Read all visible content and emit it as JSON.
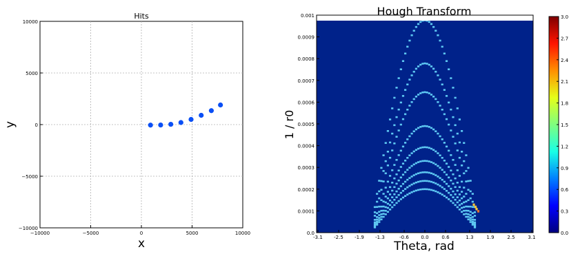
{
  "chart_data": [
    {
      "type": "scatter",
      "title": "Hits",
      "xlabel": "x",
      "ylabel": "y",
      "xlim": [
        -10000,
        10000
      ],
      "ylim": [
        -10000,
        10000
      ],
      "grid": true,
      "xticks": [
        -10000,
        -5000,
        0,
        5000,
        10000
      ],
      "yticks": [
        -10000,
        -5000,
        0,
        5000,
        10000
      ],
      "xtick_labels": [
        "−10000",
        "−5000",
        "0",
        "5000",
        "10000"
      ],
      "ytick_labels": [
        "−10000",
        "−5000",
        "0",
        "5000",
        "10000"
      ],
      "point_color": "#0a4ff5",
      "points": [
        {
          "x": 900,
          "y": -50
        },
        {
          "x": 1900,
          "y": -40
        },
        {
          "x": 2900,
          "y": 30
        },
        {
          "x": 3900,
          "y": 200
        },
        {
          "x": 4900,
          "y": 500
        },
        {
          "x": 5900,
          "y": 900
        },
        {
          "x": 6900,
          "y": 1350
        },
        {
          "x": 7800,
          "y": 1900
        }
      ]
    },
    {
      "type": "heatmap",
      "title": "Hough Transform",
      "xlabel": "Theta, rad",
      "ylabel": "1 / r0",
      "xlim": [
        -3.14,
        3.14
      ],
      "ylim": [
        0,
        0.001
      ],
      "xtick_labels": [
        "-3.1",
        "-2.5",
        "-1.9",
        "-1.3",
        "-0.6",
        "0.0",
        "0.6",
        "1.3",
        "1.9",
        "2.5",
        "3.1"
      ],
      "xticks": [
        -3.1,
        -2.5,
        -1.9,
        -1.3,
        -0.6,
        0.0,
        0.6,
        1.3,
        1.9,
        2.5,
        3.1
      ],
      "ytick_labels": [
        "0.0",
        "0.0001",
        "0.0002",
        "0.0003",
        "0.0004",
        "0.0005",
        "0.0006",
        "0.0007",
        "0.0008",
        "0.0009",
        "0.001"
      ],
      "yticks": [
        0,
        0.0001,
        0.0002,
        0.0003,
        0.0004,
        0.0005,
        0.0006,
        0.0007,
        0.0008,
        0.0009,
        0.001
      ],
      "background_color": "#00228a",
      "cell_color": "#5ec8f2",
      "hot_color": "#f5c33a",
      "peak_color": "#e8702a",
      "curves": [
        {
          "r0": 1024
        },
        {
          "r0": 1285
        },
        {
          "r0": 1548
        },
        {
          "r0": 2040
        },
        {
          "r0": 2545
        },
        {
          "r0": 3030
        },
        {
          "r0": 3600
        },
        {
          "r0": 4200
        },
        {
          "r0": 5000
        }
      ],
      "hot_cells": [
        {
          "theta": 1.42,
          "inv_r0": 0.00013
        },
        {
          "theta": 1.47,
          "inv_r0": 0.00012
        },
        {
          "theta": 1.5,
          "inv_r0": 0.00011
        }
      ],
      "peak_cell": {
        "theta": 1.55,
        "inv_r0": 0.0001
      },
      "colorbar": {
        "min": 0,
        "max": 3.0,
        "ticks": [
          0,
          0.3,
          0.6,
          0.9,
          1.2,
          1.5,
          1.8,
          2.1,
          2.4,
          2.7,
          3.0
        ],
        "tick_labels": [
          "0.0",
          "0.3",
          "0.6",
          "0.9",
          "1.2",
          "1.5",
          "1.8",
          "2.1",
          "2.4",
          "2.7",
          "3.0"
        ],
        "colors": [
          "#00007f",
          "#0000ff",
          "#007fff",
          "#19ffe5",
          "#7fff7f",
          "#e5ff19",
          "#ff8f00",
          "#ff1400",
          "#7f0000"
        ]
      }
    }
  ]
}
